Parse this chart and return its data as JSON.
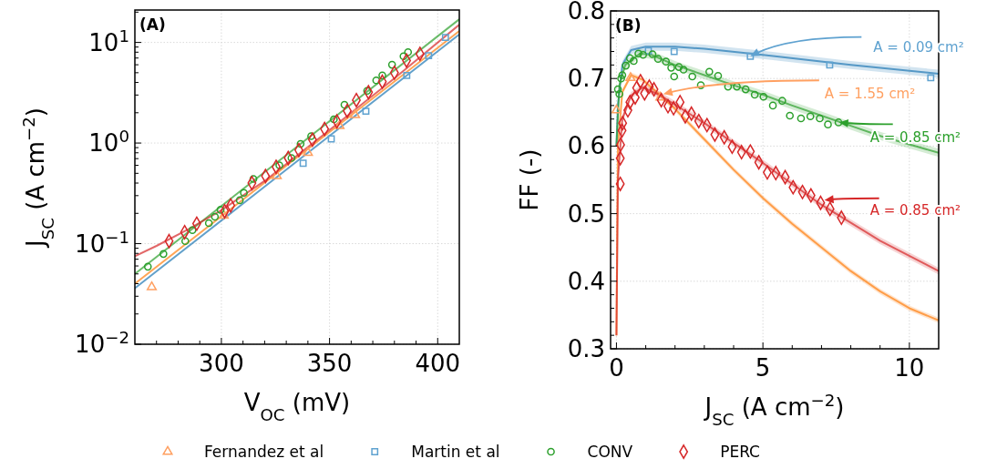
{
  "chart_data": [
    {
      "type": "scatter",
      "title": "(A)",
      "xlabel": "V$_{OC}$ (mV)",
      "ylabel": "J$_{SC}$ (A cm$^{−2}$)",
      "log": "y",
      "grid": true,
      "legend": "bottom",
      "xlim": [
        260,
        410
      ],
      "ylim": [
        0.01,
        21
      ],
      "xticks": [
        {
          "value": 270,
          "label": null
        },
        {
          "value": 280,
          "label": null
        },
        {
          "value": 290,
          "label": null
        },
        300,
        {
          "value": 310,
          "label": null
        },
        {
          "value": 320,
          "label": null
        },
        {
          "value": 330,
          "label": null
        },
        {
          "value": 340,
          "label": null
        },
        350,
        {
          "value": 360,
          "label": null
        },
        {
          "value": 370,
          "label": null
        },
        {
          "value": 380,
          "label": null
        },
        {
          "value": 390,
          "label": null
        },
        400
      ],
      "yticks": [
        {
          "value": 0.01,
          "label": "10$^{−2}$"
        },
        {
          "value": 0.02,
          "label": null
        },
        {
          "value": 0.03,
          "label": null
        },
        {
          "value": 0.04,
          "label": null
        },
        {
          "value": 0.05,
          "label": null
        },
        {
          "value": 0.06,
          "label": null
        },
        {
          "value": 0.07,
          "label": null
        },
        {
          "value": 0.08,
          "label": null
        },
        {
          "value": 0.09,
          "label": null
        },
        {
          "value": 0.1,
          "label": "10$^{−1}$"
        },
        {
          "value": 0.2,
          "label": null
        },
        {
          "value": 0.3,
          "label": null
        },
        {
          "value": 0.4,
          "label": null
        },
        {
          "value": 0.5,
          "label": null
        },
        {
          "value": 0.6,
          "label": null
        },
        {
          "value": 0.7,
          "label": null
        },
        {
          "value": 0.8,
          "label": null
        },
        {
          "value": 0.9,
          "label": null
        },
        {
          "value": 1,
          "label": "10$^{0}$"
        },
        {
          "value": 2,
          "label": null
        },
        {
          "value": 3,
          "label": null
        },
        {
          "value": 4,
          "label": null
        },
        {
          "value": 5,
          "label": null
        },
        {
          "value": 6,
          "label": null
        },
        {
          "value": 7,
          "label": null
        },
        {
          "value": 8,
          "label": null
        },
        {
          "value": 9,
          "label": null
        },
        {
          "value": 10,
          "label": "10$^{1}$"
        },
        {
          "value": 20,
          "label": null
        }
      ],
      "series": [
        {
          "type": "line",
          "color": "#ff7f0e",
          "x": [
            260,
            335,
            410
          ],
          "values": [
            0.04,
            0.72,
            13
          ]
        },
        {
          "type": "line",
          "color": "#1f77b4",
          "x": [
            260,
            335,
            410
          ],
          "values": [
            0.036,
            0.66,
            12
          ]
        },
        {
          "type": "line",
          "color": "#2ca02c",
          "x": [
            260,
            335,
            410
          ],
          "values": [
            0.05,
            0.92,
            17
          ]
        },
        {
          "type": "line",
          "color": "#d62728",
          "x": [
            260,
            270,
            285,
            300,
            320,
            350,
            380,
            410
          ],
          "values": [
            0.075,
            0.095,
            0.14,
            0.215,
            0.42,
            1.35,
            4.4,
            15
          ]
        },
        {
          "name": "Fernandez et al",
          "type": "scatter",
          "color": "#ffa061",
          "marker": "triangle",
          "x": [
            267.8,
            301.1,
            325.6,
            340,
            354.6,
            361.8
          ],
          "values": [
            0.037,
            0.19,
            0.47,
            0.8,
            1.48,
            1.9
          ]
        },
        {
          "name": "Martin et al",
          "type": "scatter",
          "color": "#5fa2d0",
          "marker": "square",
          "x": [
            337.8,
            350.8,
            366.8,
            385.7,
            395.8,
            403.6
          ],
          "values": [
            0.63,
            1.1,
            2.07,
            4.7,
            7.4,
            11.2
          ]
        },
        {
          "name": "CONV",
          "type": "scatter",
          "color": "#2ca02c",
          "marker": "circle",
          "x": [
            266,
            273.2,
            283.3,
            286.6,
            294.2,
            297,
            299.6,
            308.5,
            310.4,
            314.8,
            326.8,
            332.4,
            336.6,
            341.5,
            352,
            356.9,
            367.4,
            371.6,
            374.4,
            378.9,
            384.2,
            386.3
          ],
          "values": [
            0.059,
            0.079,
            0.106,
            0.136,
            0.16,
            0.185,
            0.217,
            0.27,
            0.32,
            0.44,
            0.6,
            0.71,
            0.98,
            1.17,
            1.72,
            2.4,
            3.3,
            4.2,
            4.7,
            6.0,
            7.3,
            8.0
          ]
        },
        {
          "name": "PERC",
          "type": "scatter",
          "color": "#d62728",
          "marker": "diamond",
          "x": [
            275.8,
            283,
            288.6,
            301.5,
            304.3,
            314.1,
            320.4,
            325.3,
            330.9,
            335.8,
            342.1,
            347.7,
            353.4,
            358.2,
            362.4,
            368,
            374.4,
            380,
            385.6,
            391.8
          ],
          "values": [
            0.106,
            0.13,
            0.158,
            0.21,
            0.24,
            0.4,
            0.47,
            0.58,
            0.71,
            0.85,
            1.08,
            1.38,
            1.64,
            2.09,
            2.67,
            3.2,
            4.07,
            5.0,
            6.6,
            7.7
          ]
        }
      ]
    },
    {
      "type": "scatter",
      "title": "(B)",
      "xlabel": "J$_{SC}$ (A cm$^{−2}$)",
      "ylabel": "FF (-)",
      "grid": true,
      "xlim": [
        -0.2,
        11
      ],
      "ylim": [
        0.3,
        0.8
      ],
      "xticks": [
        0,
        {
          "value": 1,
          "label": null
        },
        {
          "value": 2,
          "label": null
        },
        {
          "value": 3,
          "label": null
        },
        {
          "value": 4,
          "label": null
        },
        5,
        {
          "value": 6,
          "label": null
        },
        {
          "value": 7,
          "label": null
        },
        {
          "value": 8,
          "label": null
        },
        {
          "value": 9,
          "label": null
        },
        10
      ],
      "yticks": [
        0.3,
        {
          "value": 0.32,
          "label": null
        },
        {
          "value": 0.34,
          "label": null
        },
        {
          "value": 0.36,
          "label": null
        },
        {
          "value": 0.38,
          "label": null
        },
        0.4,
        {
          "value": 0.42,
          "label": null
        },
        {
          "value": 0.44,
          "label": null
        },
        {
          "value": 0.46,
          "label": null
        },
        {
          "value": 0.48,
          "label": null
        },
        0.5,
        {
          "value": 0.52,
          "label": null
        },
        {
          "value": 0.54,
          "label": null
        },
        {
          "value": 0.56,
          "label": null
        },
        {
          "value": 0.58,
          "label": null
        },
        0.6,
        {
          "value": 0.62,
          "label": null
        },
        {
          "value": 0.64,
          "label": null
        },
        {
          "value": 0.66,
          "label": null
        },
        {
          "value": 0.68,
          "label": null
        },
        0.7,
        {
          "value": 0.72,
          "label": null
        },
        {
          "value": 0.74,
          "label": null
        },
        {
          "value": 0.76,
          "label": null
        },
        {
          "value": 0.78,
          "label": null
        },
        0.8
      ],
      "annotations": [
        {
          "text": "A = 0.09 cm²",
          "x": 4.57,
          "y": 0.733
        },
        {
          "text": "A = 1.55 cm²",
          "x": 1.6,
          "y": 0.677
        },
        {
          "text": "A = 0.85 cm²",
          "x": 7.6,
          "y": 0.635
        },
        {
          "text": "A = 0.85 cm²",
          "x": 7.1,
          "y": 0.52
        }
      ],
      "series": [
        {
          "type": "line",
          "color": "#ff7f0e",
          "x": [
            0,
            0.05,
            0.2,
            0.5,
            0.9,
            1.5,
            2,
            3,
            4,
            5,
            6,
            7,
            8,
            9,
            10,
            11
          ],
          "values": [
            0.32,
            0.6,
            0.68,
            0.705,
            0.698,
            0.675,
            0.655,
            0.61,
            0.565,
            0.523,
            0.485,
            0.45,
            0.415,
            0.385,
            0.36,
            0.342
          ],
          "lower": [
            0.316,
            0.596,
            0.676,
            0.701,
            0.694,
            0.671,
            0.651,
            0.606,
            0.561,
            0.519,
            0.481,
            0.446,
            0.411,
            0.381,
            0.356,
            0.338
          ],
          "upper": [
            0.324,
            0.604,
            0.684,
            0.709,
            0.702,
            0.679,
            0.659,
            0.614,
            0.569,
            0.527,
            0.489,
            0.454,
            0.419,
            0.389,
            0.364,
            0.346
          ]
        },
        {
          "type": "line",
          "color": "#1f77b4",
          "x": [
            0,
            0.05,
            0.2,
            0.5,
            1,
            2,
            3,
            5,
            8,
            11
          ],
          "values": [
            0.6,
            0.66,
            0.72,
            0.742,
            0.747,
            0.747,
            0.744,
            0.735,
            0.72,
            0.707
          ],
          "lower": [
            0.594,
            0.654,
            0.714,
            0.736,
            0.741,
            0.741,
            0.738,
            0.729,
            0.714,
            0.701
          ],
          "upper": [
            0.606,
            0.666,
            0.726,
            0.748,
            0.753,
            0.753,
            0.75,
            0.741,
            0.726,
            0.713
          ]
        },
        {
          "type": "line",
          "color": "#2ca02c",
          "x": [
            0,
            0.1,
            0.3,
            0.8,
            1.2,
            2,
            3,
            4,
            5,
            6,
            7,
            8,
            9,
            11
          ],
          "values": [
            0.6,
            0.69,
            0.72,
            0.737,
            0.735,
            0.72,
            0.705,
            0.69,
            0.676,
            0.66,
            0.645,
            0.63,
            0.615,
            0.59
          ],
          "lower": [
            0.594,
            0.684,
            0.714,
            0.731,
            0.729,
            0.714,
            0.699,
            0.684,
            0.67,
            0.654,
            0.639,
            0.624,
            0.609,
            0.584
          ],
          "upper": [
            0.606,
            0.696,
            0.726,
            0.743,
            0.741,
            0.726,
            0.711,
            0.696,
            0.682,
            0.666,
            0.651,
            0.636,
            0.621,
            0.596
          ]
        },
        {
          "type": "line",
          "color": "#d62728",
          "x": [
            0,
            0.05,
            0.2,
            0.5,
            0.9,
            1.5,
            3,
            5,
            7,
            9,
            11
          ],
          "values": [
            0.32,
            0.55,
            0.64,
            0.675,
            0.687,
            0.675,
            0.634,
            0.575,
            0.513,
            0.46,
            0.415
          ],
          "lower": [
            0.315,
            0.545,
            0.635,
            0.67,
            0.682,
            0.67,
            0.629,
            0.57,
            0.508,
            0.455,
            0.41
          ],
          "upper": [
            0.325,
            0.555,
            0.645,
            0.68,
            0.692,
            0.68,
            0.639,
            0.58,
            0.518,
            0.465,
            0.42
          ]
        },
        {
          "type": "scatter",
          "color": "#ffa061",
          "marker": "triangle",
          "x": [
            0,
            0.48,
            1.5
          ],
          "values": [
            0.653,
            0.701,
            0.672
          ]
        },
        {
          "type": "scatter",
          "color": "#5fa2d0",
          "marker": "square",
          "x": [
            1.09,
            1.97,
            4.57,
            7.28,
            10.73
          ],
          "values": [
            0.741,
            0.74,
            0.733,
            0.72,
            0.701
          ]
        },
        {
          "type": "scatter",
          "color": "#2ca02c",
          "marker": "circle",
          "x": [
            0.05,
            0.1,
            0.16,
            0.2,
            0.32,
            0.46,
            0.59,
            0.75,
            0.91,
            1.23,
            1.42,
            1.69,
            1.87,
            1.97,
            2.13,
            2.29,
            2.59,
            2.88,
            3.17,
            3.47,
            3.81,
            4.11,
            4.41,
            4.72,
            5.02,
            5.34,
            5.66,
            5.92,
            6.3,
            6.62,
            6.94,
            7.22,
            7.58
          ],
          "values": [
            0.684,
            0.677,
            0.7,
            0.705,
            0.719,
            0.73,
            0.726,
            0.737,
            0.735,
            0.736,
            0.729,
            0.725,
            0.716,
            0.703,
            0.717,
            0.713,
            0.703,
            0.69,
            0.71,
            0.704,
            0.688,
            0.688,
            0.684,
            0.676,
            0.673,
            0.66,
            0.667,
            0.645,
            0.641,
            0.644,
            0.641,
            0.632,
            0.635
          ]
        },
        {
          "type": "scatter",
          "color": "#d62728",
          "marker": "diamond",
          "x": [
            0.13,
            0.13,
            0.14,
            0.19,
            0.21,
            0.39,
            0.46,
            0.64,
            0.69,
            0.82,
            0.96,
            1.12,
            1.28,
            1.53,
            1.76,
            1.95,
            2.17,
            2.35,
            2.56,
            2.81,
            3.09,
            3.36,
            3.68,
            3.95,
            4.27,
            4.57,
            4.86,
            5.15,
            5.44,
            5.76,
            6.03,
            6.35,
            6.64,
            6.97,
            7.29,
            7.68
          ],
          "values": [
            0.544,
            0.582,
            0.602,
            0.623,
            0.634,
            0.653,
            0.665,
            0.672,
            0.686,
            0.696,
            0.678,
            0.688,
            0.684,
            0.668,
            0.659,
            0.656,
            0.665,
            0.644,
            0.648,
            0.637,
            0.631,
            0.617,
            0.613,
            0.599,
            0.591,
            0.592,
            0.576,
            0.561,
            0.56,
            0.554,
            0.539,
            0.532,
            0.527,
            0.516,
            0.507,
            0.494
          ]
        }
      ]
    }
  ]
}
